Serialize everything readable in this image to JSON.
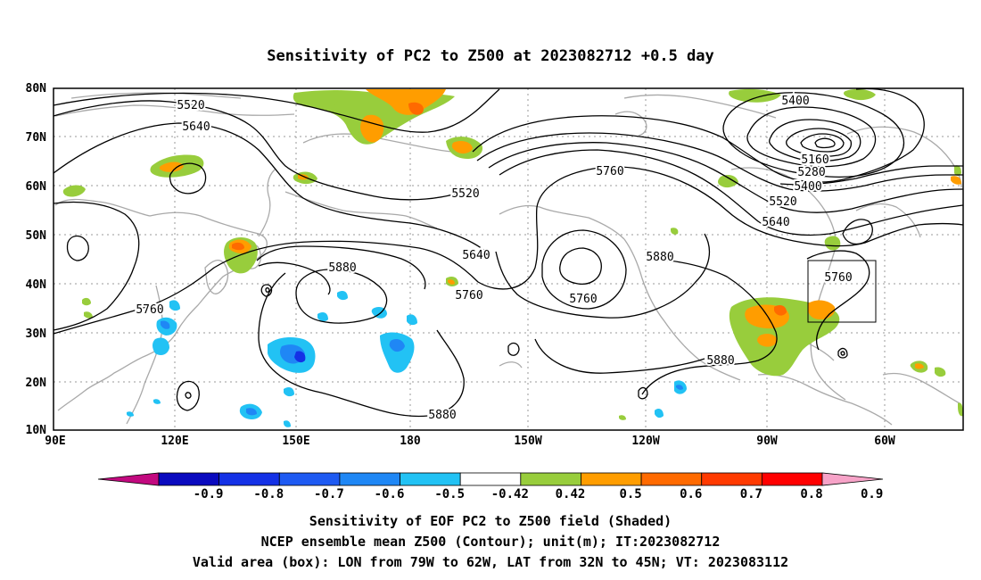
{
  "title": "Sensitivity of PC2 to Z500 at 2023082712 +0.5 day",
  "axes": {
    "lon_labels": [
      "90E",
      "120E",
      "150E",
      "180",
      "150W",
      "120W",
      "90W",
      "60W"
    ],
    "lat_labels": [
      "80N",
      "70N",
      "60N",
      "50N",
      "40N",
      "30N",
      "20N",
      "10N"
    ]
  },
  "contour_labels": [
    "5520",
    "5640",
    "5520",
    "5760",
    "5400",
    "5160",
    "5280",
    "5400",
    "5520",
    "5640",
    "5760",
    "5880",
    "5640",
    "5760",
    "5760",
    "5880",
    "5760",
    "5880",
    "5880"
  ],
  "colorbar": {
    "labels": [
      "-0.9",
      "-0.8",
      "-0.7",
      "-0.6",
      "-0.5",
      "-0.42",
      "0.42",
      "0.5",
      "0.6",
      "0.7",
      "0.8",
      "0.9"
    ],
    "colors": [
      "#c2097f",
      "#0a0abf",
      "#1431e6",
      "#1e5af2",
      "#1f87f5",
      "#22c2f4",
      "#ffffff",
      "#98cd3c",
      "#ff9d00",
      "#ff6a00",
      "#ff3a00",
      "#ff0000",
      "#f7a3c8"
    ]
  },
  "captions": [
    "Sensitivity of EOF PC2 to Z500 field (Shaded)",
    "NCEP ensemble mean Z500 (Contour); unit(m); IT:2023082712",
    "Valid area (box): LON from 79W to 62W, LAT from 32N to 45N; VT: 2023083112"
  ]
}
